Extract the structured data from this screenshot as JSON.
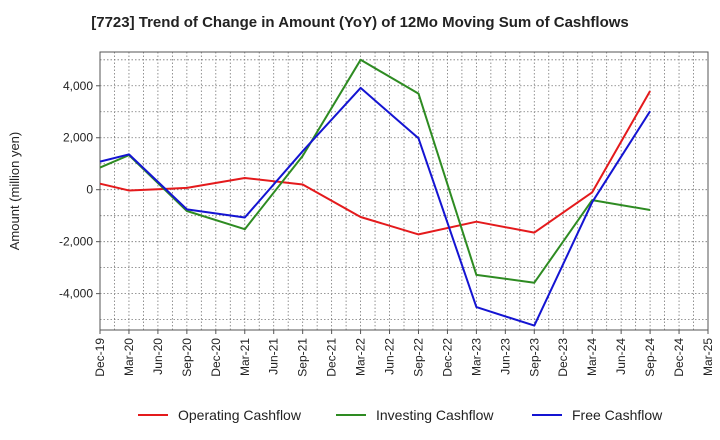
{
  "chart_data": {
    "type": "line",
    "title": "[7723]  Trend of Change in Amount (YoY) of 12Mo Moving Sum of Cashflows",
    "xlabel": "",
    "ylabel": "Amount (million yen)",
    "ylim": [
      -5400,
      5300
    ],
    "yticks": [
      -4000,
      -2000,
      0,
      2000,
      4000
    ],
    "ytick_labels": [
      "-4,000",
      "-2,000",
      "0",
      "2,000",
      "4,000"
    ],
    "grid": true,
    "legend_position": "bottom",
    "categories": [
      "Dec-19",
      "Mar-20",
      "Jun-20",
      "Sep-20",
      "Dec-20",
      "Mar-21",
      "Jun-21",
      "Sep-21",
      "Dec-21",
      "Mar-22",
      "Jun-22",
      "Sep-22",
      "Dec-22",
      "Mar-23",
      "Jun-23",
      "Sep-23",
      "Dec-23",
      "Mar-24",
      "Jun-24",
      "Sep-24",
      "Dec-24",
      "Mar-25"
    ],
    "series": [
      {
        "name": "Operating Cashflow",
        "color": "#e41a1c",
        "values": [
          230,
          -30,
          20,
          70,
          null,
          450,
          null,
          200,
          null,
          -1050,
          null,
          -1720,
          null,
          -1230,
          null,
          -1650,
          null,
          -100,
          null,
          3800,
          null,
          null
        ]
      },
      {
        "name": "Investing Cashflow",
        "color": "#2e8b22",
        "values": [
          850,
          1330,
          null,
          -820,
          null,
          -1520,
          null,
          1300,
          null,
          5000,
          null,
          3700,
          null,
          -3280,
          null,
          -3580,
          null,
          -400,
          null,
          -780,
          null,
          null
        ]
      },
      {
        "name": "Free Cashflow",
        "color": "#1414d2",
        "values": [
          1080,
          1360,
          null,
          -760,
          null,
          -1070,
          null,
          1480,
          null,
          3920,
          null,
          1980,
          null,
          -4520,
          null,
          -5230,
          null,
          -480,
          null,
          3020,
          null,
          null
        ]
      }
    ]
  }
}
